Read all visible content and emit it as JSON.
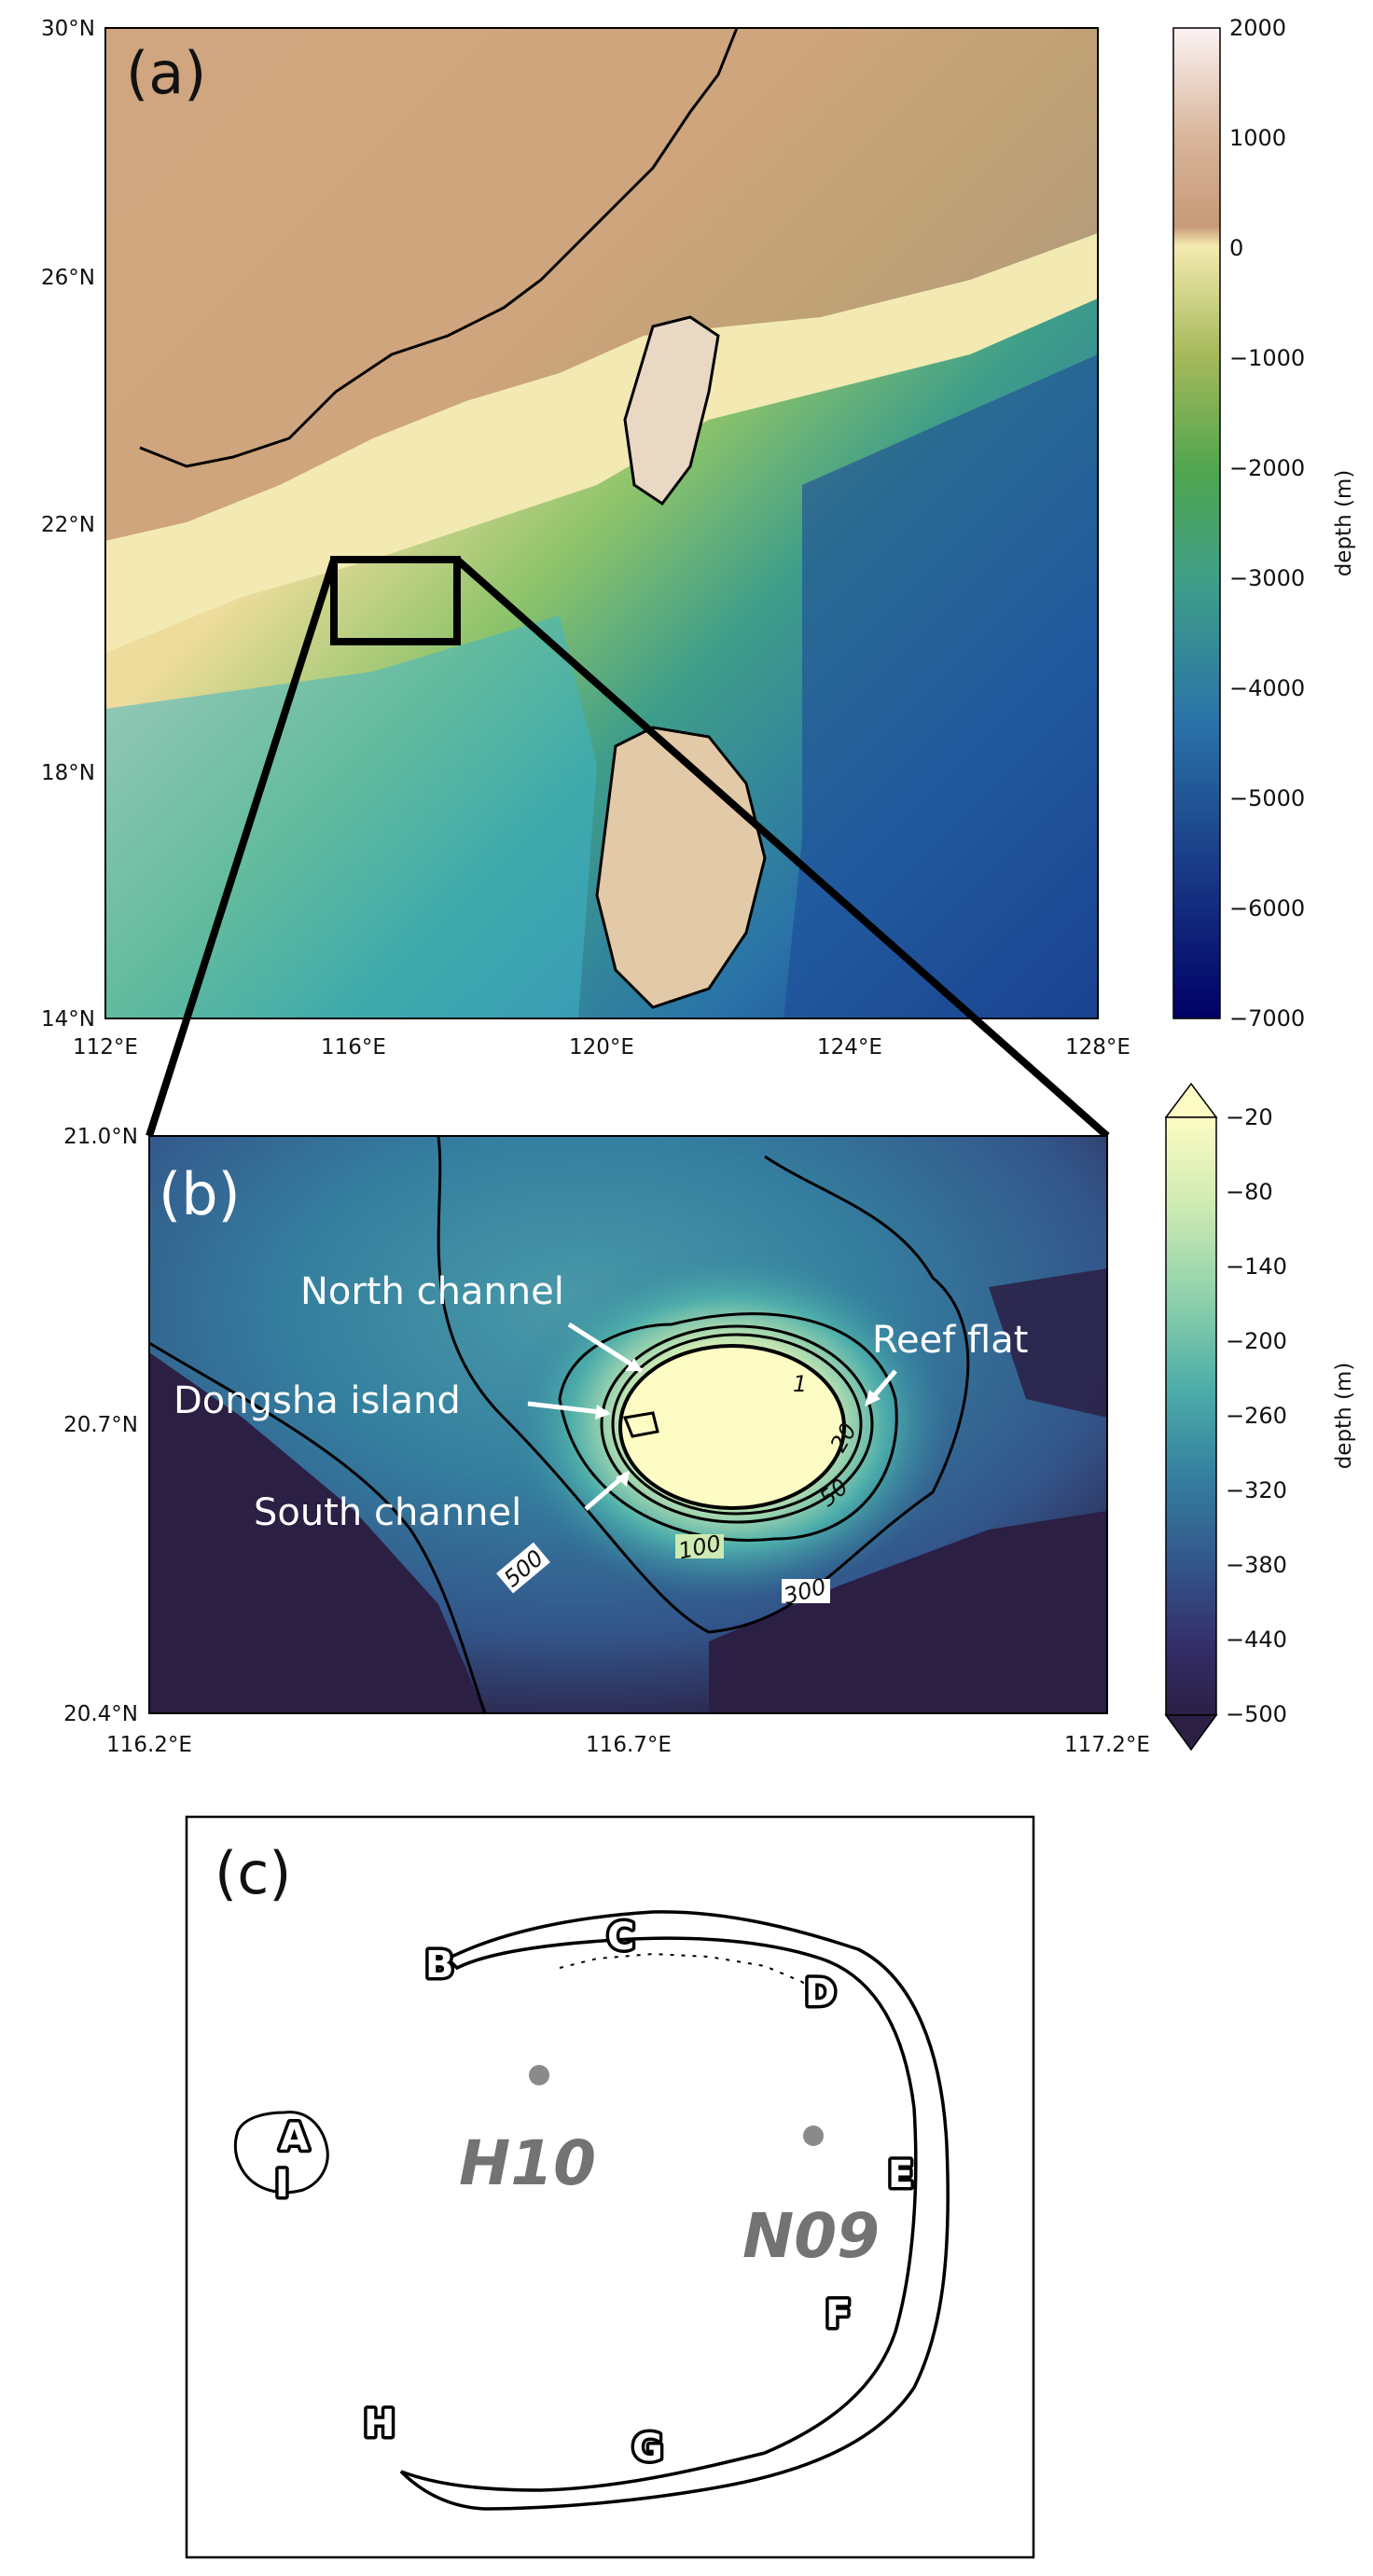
{
  "panel_a": {
    "label": "(a)",
    "lat_ticks": [
      "30°N",
      "26°N",
      "22°N",
      "18°N",
      "14°N"
    ],
    "lon_ticks": [
      "112°E",
      "116°E",
      "120°E",
      "124°E",
      "128°E"
    ],
    "colorbar": {
      "label": "depth (m)",
      "ticks": [
        "2000",
        "1000",
        "0",
        "−1000",
        "−2000",
        "−3000",
        "−4000",
        "−5000",
        "−6000",
        "−7000"
      ],
      "colors": [
        "#fbf3f3",
        "#c69a78",
        "#f4eab0",
        "#a6b95a",
        "#4ea54f",
        "#3f9e89",
        "#2a73a8",
        "#193a86",
        "#000066"
      ]
    }
  },
  "panel_b": {
    "label": "(b)",
    "lat_ticks": [
      "21.0°N",
      "20.7°N",
      "20.4°N"
    ],
    "lon_ticks": [
      "116.2°E",
      "116.7°E",
      "117.2°E"
    ],
    "annotations": {
      "north_channel": "North channel",
      "dongsha_island": "Dongsha island",
      "south_channel": "South channel",
      "reef_flat": "Reef flat"
    },
    "contour_labels": {
      "c1": "1",
      "c20": "20",
      "c50": "50",
      "c100": "100",
      "c300": "300",
      "c500": "500"
    },
    "colorbar": {
      "label": "depth (m)",
      "ticks": [
        "−20",
        "−80",
        "−140",
        "−200",
        "−260",
        "−320",
        "−380",
        "−440",
        "−500"
      ],
      "colors": [
        "#fdfcc4",
        "#cdeab2",
        "#8fd1ab",
        "#4eaeaa",
        "#347f9f",
        "#33558a",
        "#342f6b",
        "#2b1f44"
      ]
    }
  },
  "panel_c": {
    "label": "(c)",
    "sites": [
      "A",
      "B",
      "C",
      "D",
      "E",
      "F",
      "G",
      "H",
      "I"
    ],
    "stations": [
      "H10",
      "N09"
    ]
  }
}
